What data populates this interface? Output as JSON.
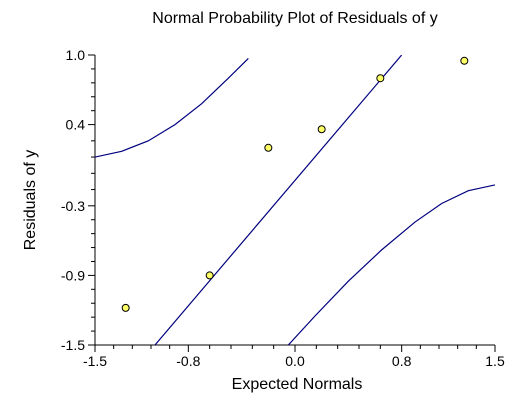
{
  "chart_data": {
    "type": "scatter",
    "title": "Normal Probability Plot of Residuals of y",
    "xlabel": "Expected Normals",
    "ylabel": "Residuals of y",
    "xlim": [
      -1.5,
      1.5
    ],
    "ylim": [
      -1.5,
      1.0
    ],
    "x_ticks": [
      -1.5,
      -0.8,
      0.0,
      0.8,
      1.5
    ],
    "x_tick_labels": [
      "-1.5",
      "-0.8",
      "0.0",
      "0.8",
      "1.5"
    ],
    "y_ticks": [
      -1.5,
      -0.9,
      -0.3,
      0.4,
      1.0
    ],
    "y_tick_labels": [
      "-1.5",
      "-0.9",
      "-0.3",
      "0.4",
      "1.0"
    ],
    "grid": false,
    "series": [
      {
        "type": "scatter",
        "color": "#ffff66",
        "edge_color": "#000000",
        "points": [
          {
            "x": -1.27,
            "y": -1.18
          },
          {
            "x": -0.64,
            "y": -0.9
          },
          {
            "x": -0.2,
            "y": 0.2
          },
          {
            "x": 0.2,
            "y": 0.36
          },
          {
            "x": 0.64,
            "y": 0.8
          },
          {
            "x": 1.27,
            "y": 0.95
          }
        ]
      },
      {
        "type": "line",
        "role": "reference",
        "color": "#000080",
        "x": [
          -1.05,
          0.8
        ],
        "y": [
          -1.5,
          1.0
        ]
      },
      {
        "type": "line",
        "role": "upper-band",
        "color": "#000080",
        "x": [
          -1.5,
          -1.3,
          -1.1,
          -0.9,
          -0.7,
          -0.5,
          -0.35
        ],
        "y": [
          0.12,
          0.17,
          0.26,
          0.4,
          0.58,
          0.8,
          0.97
        ]
      },
      {
        "type": "line",
        "role": "lower-band",
        "color": "#000080",
        "x": [
          -0.05,
          0.15,
          0.4,
          0.65,
          0.9,
          1.1,
          1.3,
          1.5
        ],
        "y": [
          -1.5,
          -1.25,
          -0.95,
          -0.68,
          -0.44,
          -0.28,
          -0.17,
          -0.12
        ]
      }
    ]
  }
}
